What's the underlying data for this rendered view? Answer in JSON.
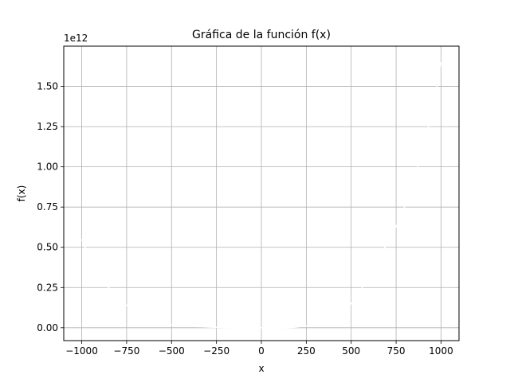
{
  "chart_data": {
    "type": "line",
    "title": "Gráfica de la función f(x)",
    "xlabel": "x",
    "ylabel": "f(x)",
    "y_offset_text": "1e12",
    "grid": true,
    "xlim": [
      -1100,
      1100
    ],
    "ylim": [
      -0.08,
      1.75
    ],
    "y_units_scale": 1000000000000.0,
    "x_ticks": [
      -1000,
      -750,
      -500,
      -250,
      0,
      250,
      500,
      750,
      1000
    ],
    "x_tick_labels": [
      "−1000",
      "−750",
      "−500",
      "−250",
      "0",
      "250",
      "500",
      "750",
      "1000"
    ],
    "y_ticks": [
      0.0,
      0.25,
      0.5,
      0.75,
      1.0,
      1.25,
      1.5
    ],
    "y_tick_labels": [
      "0.00",
      "0.25",
      "0.50",
      "0.75",
      "1.00",
      "1.25",
      "1.50"
    ],
    "series": [
      {
        "color": "#ffffff",
        "x": [
          -1000,
          -950,
          -900,
          -850,
          -800,
          -750,
          -700,
          -650,
          -600,
          -550,
          -500,
          -450,
          -400,
          -350,
          -300,
          -250,
          -200,
          -150,
          -100,
          -50,
          0,
          50,
          100,
          150,
          200,
          250,
          300,
          350,
          400,
          450,
          500,
          550,
          600,
          650,
          700,
          750,
          800,
          850,
          900,
          950,
          1000
        ],
        "y": [
          0.55,
          0.42,
          0.33,
          0.25,
          0.19,
          0.14,
          0.1,
          0.07,
          0.05,
          0.03,
          0.02,
          0.015,
          0.01,
          0.006,
          0.004,
          0.002,
          0.001,
          0.0005,
          0.0002,
          0.0,
          0.0,
          0.0,
          0.0002,
          0.001,
          0.004,
          0.01,
          0.02,
          0.035,
          0.06,
          0.1,
          0.15,
          0.23,
          0.32,
          0.44,
          0.52,
          0.63,
          0.76,
          0.92,
          1.12,
          1.34,
          1.65
        ]
      }
    ]
  }
}
